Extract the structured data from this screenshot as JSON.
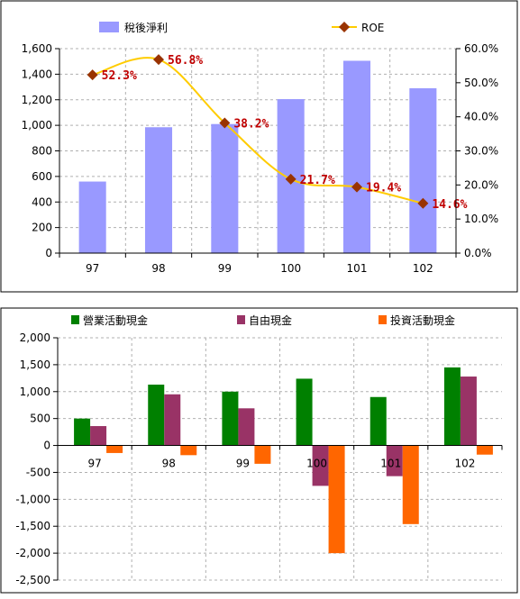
{
  "chart_data": [
    {
      "type": "bar",
      "categories": [
        "97",
        "98",
        "99",
        "100",
        "101",
        "102"
      ],
      "series": [
        {
          "name": "稅後淨利",
          "type": "bar",
          "axis": "left",
          "values": [
            560,
            985,
            1010,
            1205,
            1505,
            1290
          ],
          "color": "#9999ff"
        },
        {
          "name": "ROE",
          "type": "line",
          "axis": "right",
          "values": [
            52.3,
            56.8,
            38.2,
            21.7,
            19.4,
            14.6
          ],
          "labels": [
            "52.3%",
            "56.8%",
            "38.2%",
            "21.7%",
            "19.4%",
            "14.6%"
          ],
          "color": "#ffcc00",
          "marker_color": "#993300"
        }
      ],
      "ylim": [
        0,
        1600
      ],
      "yticks": [
        "0",
        "200",
        "400",
        "600",
        "800",
        "1,000",
        "1,200",
        "1,400",
        "1,600"
      ],
      "y2lim": [
        0,
        60
      ],
      "y2ticks": [
        "0.0%",
        "10.0%",
        "20.0%",
        "30.0%",
        "40.0%",
        "50.0%",
        "60.0%"
      ],
      "grid": true,
      "legend": "top"
    },
    {
      "type": "bar",
      "categories": [
        "97",
        "98",
        "99",
        "100",
        "101",
        "102"
      ],
      "series": [
        {
          "name": "營業活動現金",
          "values": [
            500,
            1130,
            1000,
            1240,
            900,
            1450
          ],
          "color": "#008000"
        },
        {
          "name": "自由現金",
          "values": [
            360,
            950,
            690,
            -750,
            -570,
            1280
          ],
          "color": "#993366"
        },
        {
          "name": "投資活動現金",
          "values": [
            -140,
            -180,
            -340,
            -2000,
            -1460,
            -170
          ],
          "color": "#ff6600"
        }
      ],
      "ylim": [
        -2500,
        2000
      ],
      "yticks": [
        "-2,500",
        "-2,000",
        "-1,500",
        "-1,000",
        "-500",
        "0",
        "500",
        "1,000",
        "1,500",
        "2,000"
      ],
      "grid": true,
      "legend": "top"
    }
  ]
}
